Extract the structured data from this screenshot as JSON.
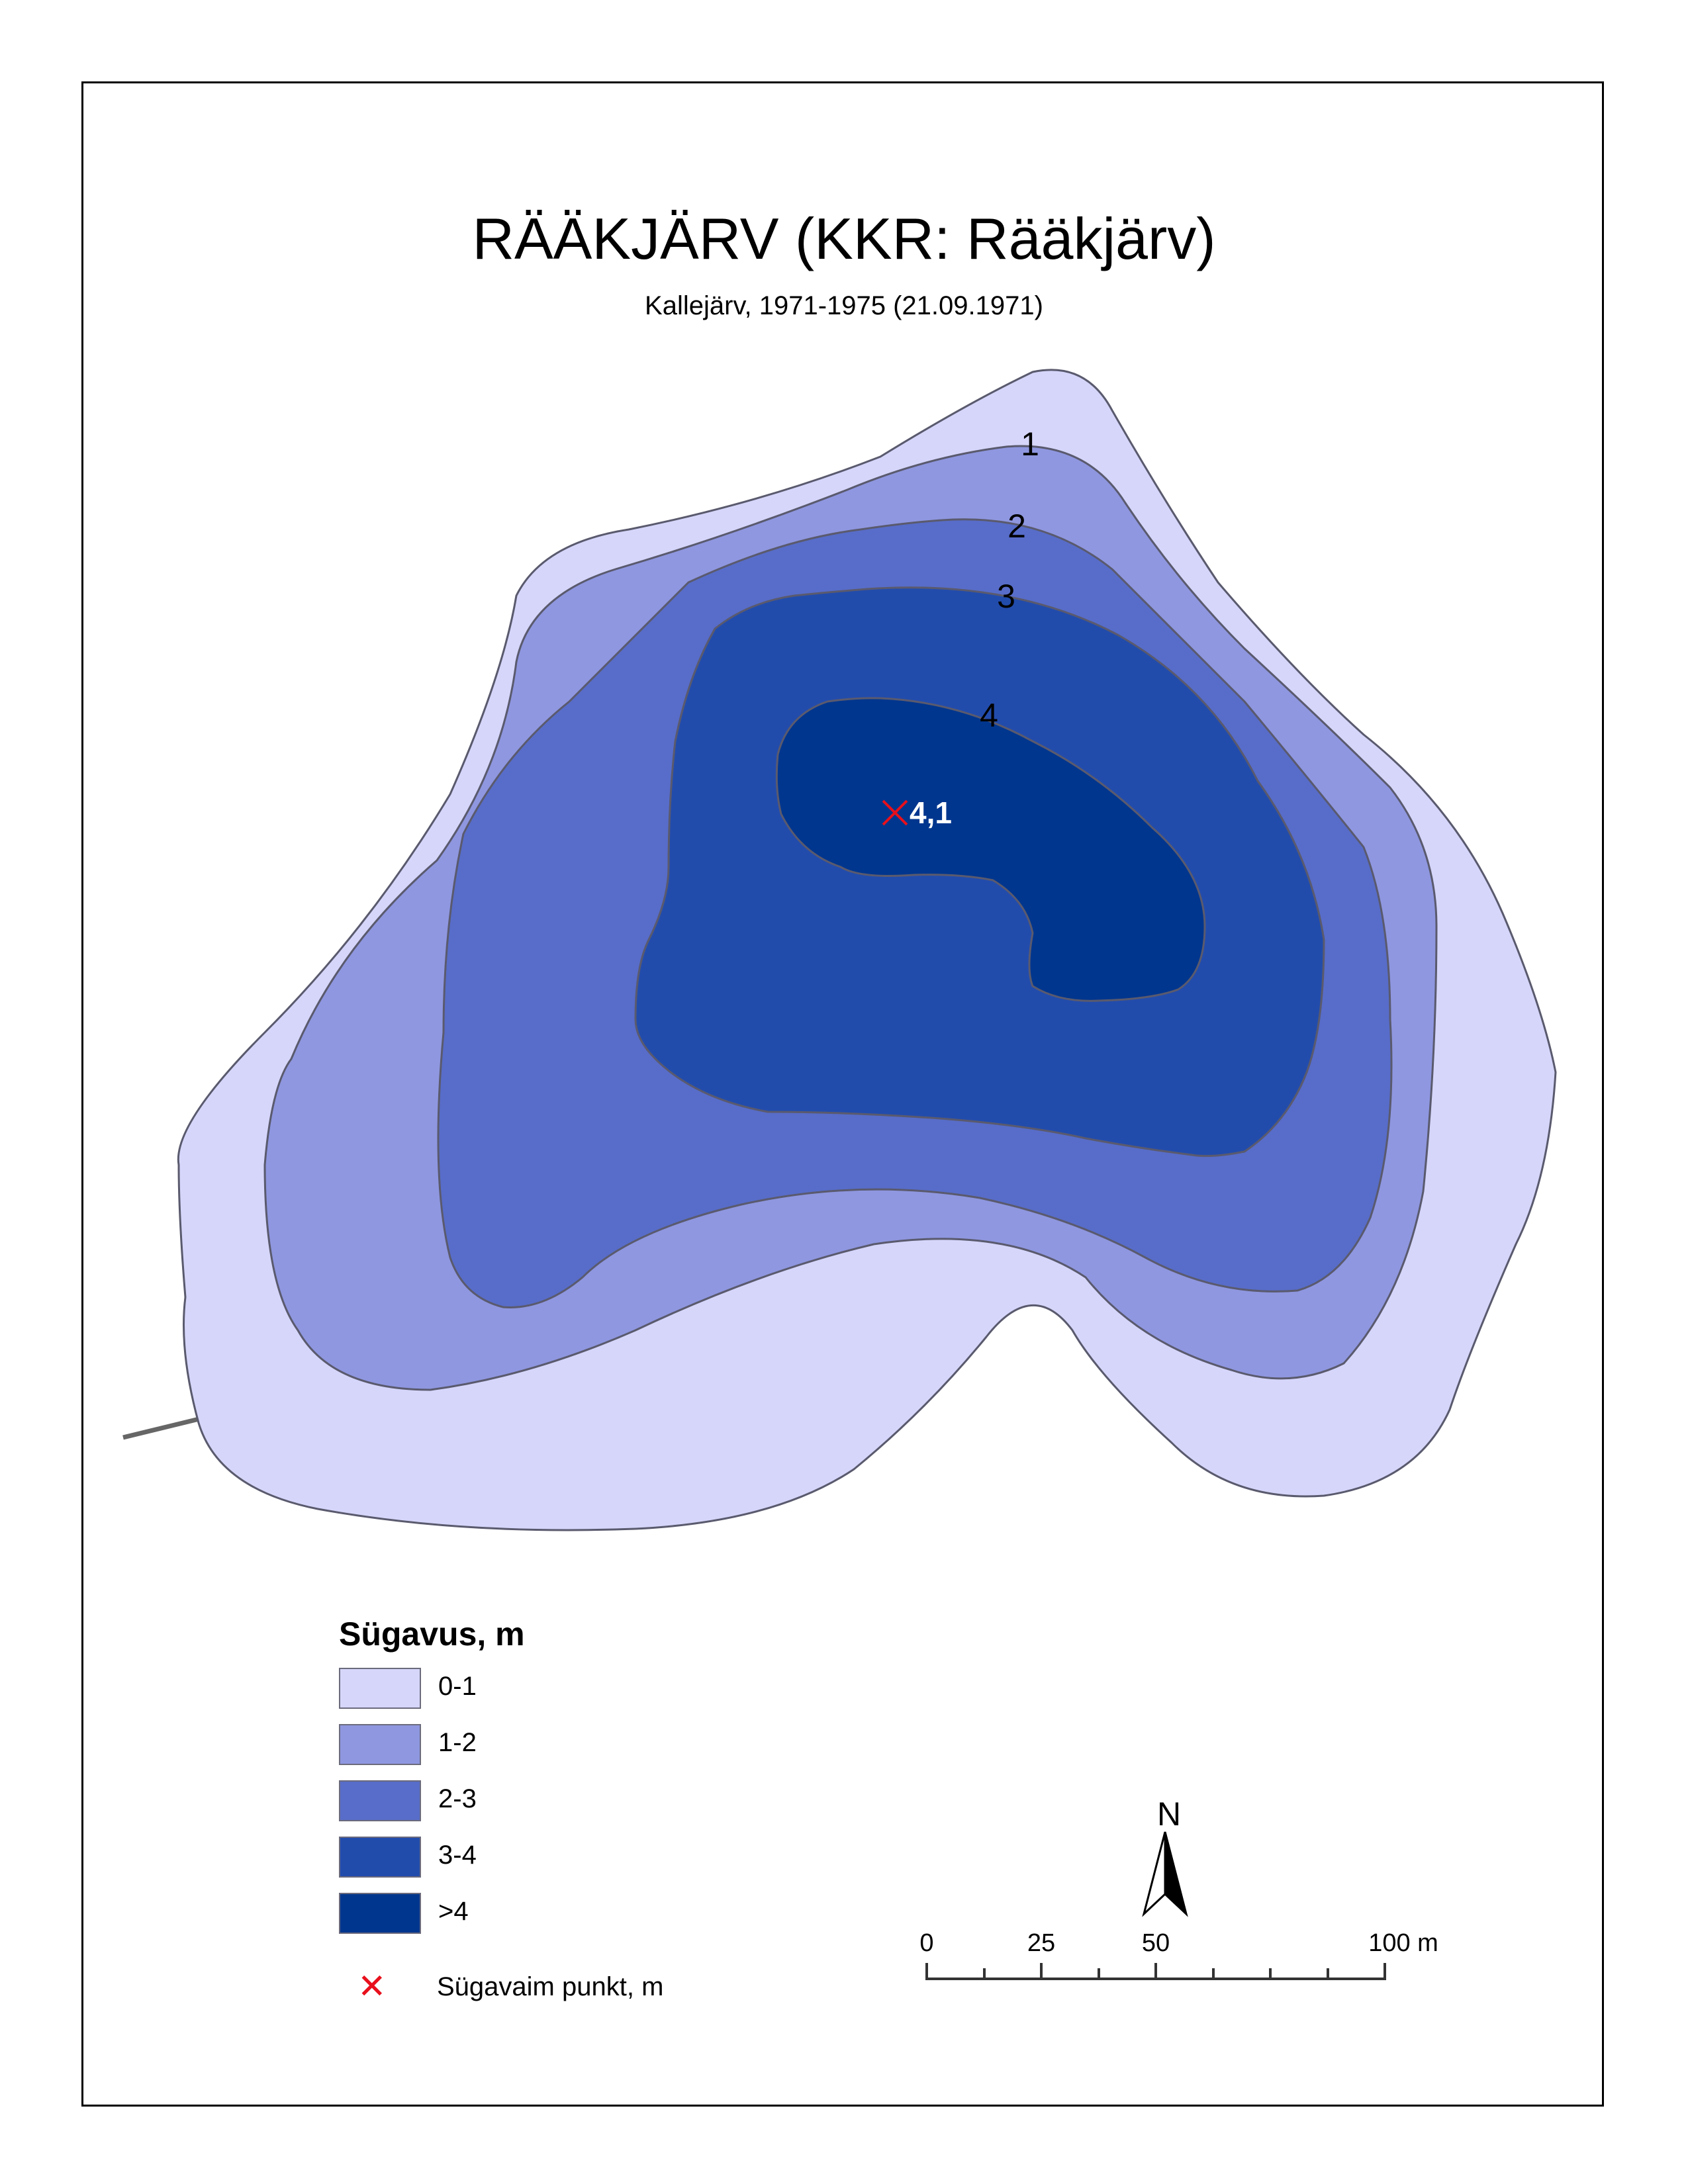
{
  "title": "RÄÄKJÄRV (KKR: Rääkjärv)",
  "subtitle": "Kallejärv, 1971-1975 (21.09.1971)",
  "colors": {
    "depth_0_1": "#d6d6fb",
    "depth_1_2": "#8f97e0",
    "depth_2_3": "#586dc9",
    "depth_3_4": "#224cac",
    "depth_gt4": "#00368e",
    "contour_line": "#5a5a6e",
    "deepest_marker": "#e8101c",
    "outlet_line": "#666666"
  },
  "contour_labels": [
    "1",
    "2",
    "3",
    "4"
  ],
  "deepest_point": {
    "value": "4,1"
  },
  "legend": {
    "title": "Sügavus, m",
    "items": [
      {
        "label": "0-1",
        "color": "#d6d6fb"
      },
      {
        "label": "1-2",
        "color": "#8f97e0"
      },
      {
        "label": "2-3",
        "color": "#586dc9"
      },
      {
        "label": "3-4",
        "color": "#224cac"
      },
      {
        "label": ">4",
        "color": "#00368e"
      }
    ],
    "deepest_label": "Sügavaim punkt, m"
  },
  "scale_bar": {
    "labels": [
      "0",
      "25",
      "50",
      "100 m"
    ],
    "unit": "m"
  },
  "north_arrow": {
    "label": "N",
    "icon": "north-arrow-icon"
  }
}
